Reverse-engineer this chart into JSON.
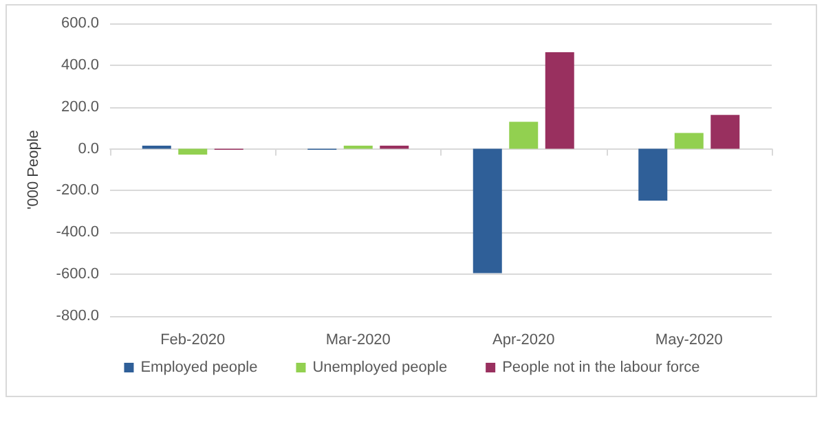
{
  "chart_data": {
    "type": "bar",
    "ylabel": "'000 People",
    "categories": [
      "Feb-2020",
      "Mar-2020",
      "Apr-2020",
      "May-2020"
    ],
    "series": [
      {
        "name": "Employed people",
        "color": "#2f5f98",
        "values": [
          15,
          -5,
          -595,
          -248
        ]
      },
      {
        "name": "Unemployed people",
        "color": "#92d050",
        "values": [
          -28,
          15,
          129,
          76
        ]
      },
      {
        "name": "People not in the labour force",
        "color": "#99305f",
        "values": [
          -5,
          15,
          462,
          162
        ]
      }
    ],
    "ylim": [
      -800,
      600
    ],
    "yticks": [
      {
        "value": -800,
        "label": "-800.0"
      },
      {
        "value": -600,
        "label": "-600.0"
      },
      {
        "value": -400,
        "label": "-400.0"
      },
      {
        "value": -200,
        "label": "-200.0"
      },
      {
        "value": 0,
        "label": "0.0"
      },
      {
        "value": 200,
        "label": "200.0"
      },
      {
        "value": 400,
        "label": "400.0"
      },
      {
        "value": 600,
        "label": "600.0"
      }
    ],
    "grid": "y",
    "legend": "bottom"
  }
}
